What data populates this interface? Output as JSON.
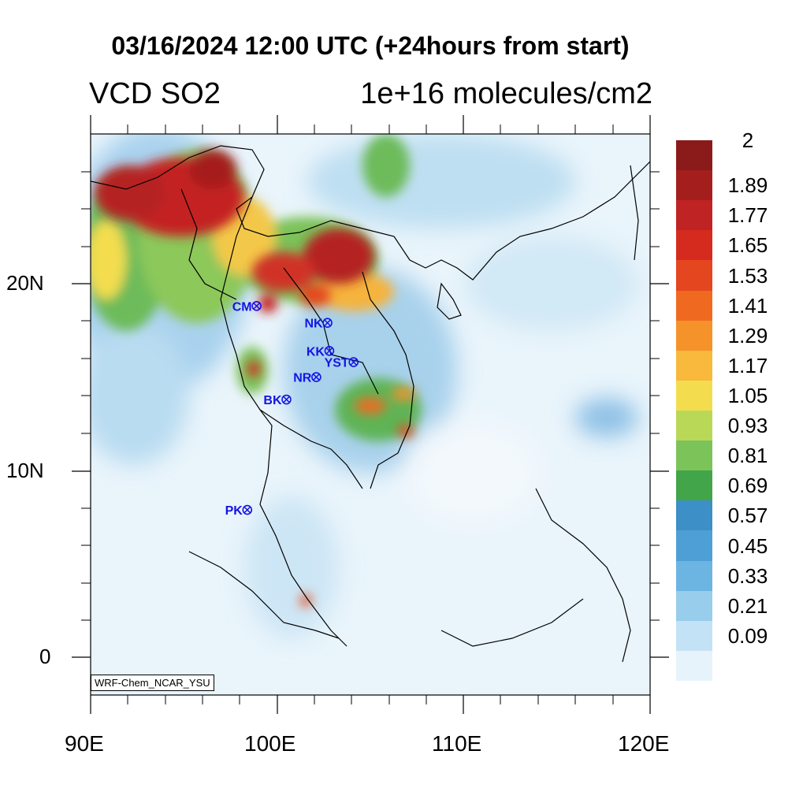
{
  "title": "03/16/2024 12:00 UTC (+24hours from start)",
  "left_subtitle": "VCD SO2",
  "right_subtitle": "1e+16 molecules/cm2",
  "credit": "WRF-Chem_NCAR_YSU",
  "axes": {
    "x_ticks": [
      "90E",
      "100E",
      "110E",
      "120E"
    ],
    "y_ticks": [
      "20N",
      "10N",
      "0"
    ],
    "lon_range": [
      90,
      120
    ],
    "lat_range": [
      -2,
      28
    ]
  },
  "colorbar": {
    "labels": [
      "2",
      "1.89",
      "1.77",
      "1.65",
      "1.53",
      "1.41",
      "1.29",
      "1.17",
      "1.05",
      "0.93",
      "0.81",
      "0.69",
      "0.57",
      "0.45",
      "0.33",
      "0.21",
      "0.09"
    ],
    "colors": [
      "#8b1a1a",
      "#a51e1e",
      "#bf2323",
      "#d52b1f",
      "#e4461f",
      "#ef6a20",
      "#f5922a",
      "#f8b93c",
      "#f3dd4f",
      "#b9d857",
      "#7cc35a",
      "#42a54a",
      "#3c8fc7",
      "#4e9fd6",
      "#6cb4e2",
      "#98cdec",
      "#c4e2f5",
      "#e6f3fb"
    ]
  },
  "cities": [
    {
      "name": "CM",
      "lon": 98.9,
      "lat": 18.8
    },
    {
      "name": "NK",
      "lon": 102.7,
      "lat": 17.9
    },
    {
      "name": "KK",
      "lon": 102.8,
      "lat": 16.4
    },
    {
      "name": "YST",
      "lon": 104.1,
      "lat": 15.8
    },
    {
      "name": "NR",
      "lon": 102.1,
      "lat": 15.0
    },
    {
      "name": "BK",
      "lon": 100.5,
      "lat": 13.8
    },
    {
      "name": "PK",
      "lon": 98.4,
      "lat": 7.9
    }
  ]
}
